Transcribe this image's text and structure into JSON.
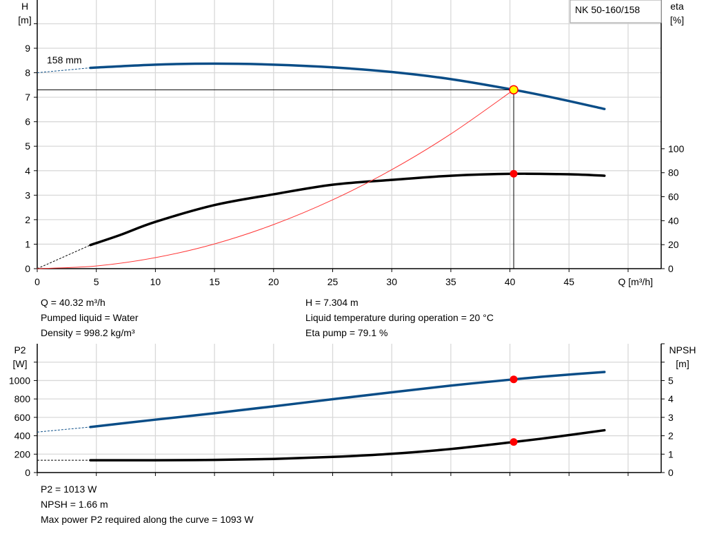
{
  "chart_data": [
    {
      "type": "line",
      "title": "NK 50-160/158",
      "xlabel": "Q [m³/h]",
      "ylabel": "H\n[m]",
      "y2label": "eta\n[%]",
      "xlim": [
        0,
        52.8
      ],
      "ylim": [
        0,
        10.97
      ],
      "y2lim": [
        0,
        224
      ],
      "xticks": [
        0,
        5,
        10,
        15,
        20,
        25,
        30,
        35,
        40,
        45
      ],
      "yticks": [
        0,
        1,
        2,
        3,
        4,
        5,
        6,
        7,
        8,
        9
      ],
      "y2ticks": [
        0,
        20,
        40,
        60,
        80,
        100
      ],
      "grid": true,
      "annotation": "158 mm",
      "series": [
        {
          "id": "H",
          "axis": "left",
          "color": "#0a4d87",
          "extrapolated": [
            [
              0,
              8.0
            ],
            [
              4.5,
              8.2
            ]
          ],
          "points": [
            [
              4.5,
              8.2
            ],
            [
              10,
              8.33
            ],
            [
              15,
              8.37
            ],
            [
              20,
              8.33
            ],
            [
              25,
              8.22
            ],
            [
              30,
              8.03
            ],
            [
              35,
              7.74
            ],
            [
              40.32,
              7.304
            ],
            [
              44,
              6.95
            ],
            [
              48,
              6.52
            ]
          ]
        },
        {
          "id": "eta",
          "axis": "right",
          "color": "#000000",
          "extrapolated": [
            [
              0,
              0
            ],
            [
              4.5,
              19.7
            ]
          ],
          "points": [
            [
              4.5,
              19.7
            ],
            [
              7,
              28
            ],
            [
              10,
              39
            ],
            [
              15,
              53
            ],
            [
              20,
              62
            ],
            [
              25,
              70
            ],
            [
              30,
              74
            ],
            [
              35,
              77.5
            ],
            [
              40.32,
              79.1
            ],
            [
              45,
              78.7
            ],
            [
              48,
              77.5
            ]
          ]
        },
        {
          "id": "system",
          "axis": "left",
          "color": "#ff3333",
          "points": [
            [
              0,
              0
            ],
            [
              5,
              0.11
            ],
            [
              10,
              0.45
            ],
            [
              15,
              1.01
            ],
            [
              20,
              1.8
            ],
            [
              25,
              2.81
            ],
            [
              30,
              4.04
            ],
            [
              35,
              5.5
            ],
            [
              40.32,
              7.304
            ]
          ]
        }
      ],
      "operating_point": {
        "Q": 40.32,
        "H": 7.304,
        "eta": 79.1
      }
    },
    {
      "type": "line",
      "xlim": [
        0,
        52.8
      ],
      "ylabel": "P2\n[W]",
      "y2label": "NPSH\n[m]",
      "ylim": [
        0,
        1400
      ],
      "y2lim": [
        0,
        7
      ],
      "yticks": [
        0,
        200,
        400,
        600,
        800,
        1000
      ],
      "y2ticks": [
        0,
        1,
        2,
        3,
        4,
        5
      ],
      "grid": true,
      "series": [
        {
          "id": "P2",
          "axis": "left",
          "color": "#0a4d87",
          "extrapolated": [
            [
              0,
              440
            ],
            [
              4.5,
              495
            ]
          ],
          "points": [
            [
              4.5,
              495
            ],
            [
              10,
              575
            ],
            [
              15,
              645
            ],
            [
              20,
              720
            ],
            [
              25,
              797
            ],
            [
              30,
              872
            ],
            [
              35,
              945
            ],
            [
              40.32,
              1013
            ],
            [
              44,
              1055
            ],
            [
              48,
              1093
            ]
          ]
        },
        {
          "id": "NPSH",
          "axis": "right",
          "color": "#000000",
          "extrapolated": [
            [
              0,
              0.67
            ],
            [
              4.5,
              0.67
            ]
          ],
          "points": [
            [
              4.5,
              0.67
            ],
            [
              10,
              0.67
            ],
            [
              15,
              0.69
            ],
            [
              20,
              0.74
            ],
            [
              25,
              0.85
            ],
            [
              30,
              1.02
            ],
            [
              35,
              1.28
            ],
            [
              40.32,
              1.66
            ],
            [
              44,
              1.95
            ],
            [
              48,
              2.3
            ]
          ]
        }
      ],
      "operating_point": {
        "Q": 40.32,
        "P2": 1013,
        "NPSH": 1.66
      }
    }
  ],
  "info_top": {
    "q": "Q = 40.32 m³/h",
    "liquid": "Pumped liquid = Water",
    "density": "Density = 998.2 kg/m³",
    "h": "H = 7.304 m",
    "temp": "Liquid temperature during operation = 20 °C",
    "eta": "Eta pump = 79.1 %"
  },
  "info_bottom": {
    "p2": "P2 = 1013 W",
    "npsh": "NPSH = 1.66 m",
    "max": "Max power P2 required along the curve = 1093 W"
  }
}
